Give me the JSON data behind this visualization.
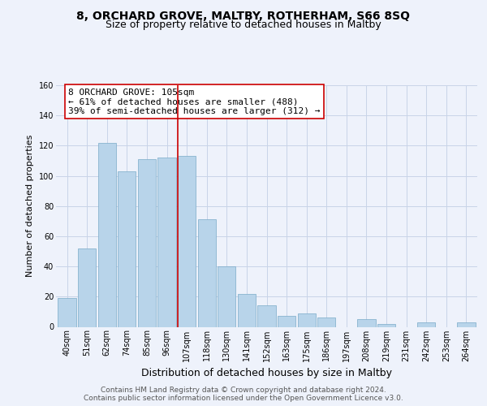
{
  "title": "8, ORCHARD GROVE, MALTBY, ROTHERHAM, S66 8SQ",
  "subtitle": "Size of property relative to detached houses in Maltby",
  "xlabel": "Distribution of detached houses by size in Maltby",
  "ylabel": "Number of detached properties",
  "categories": [
    "40sqm",
    "51sqm",
    "62sqm",
    "74sqm",
    "85sqm",
    "96sqm",
    "107sqm",
    "118sqm",
    "130sqm",
    "141sqm",
    "152sqm",
    "163sqm",
    "175sqm",
    "186sqm",
    "197sqm",
    "208sqm",
    "219sqm",
    "231sqm",
    "242sqm",
    "253sqm",
    "264sqm"
  ],
  "values": [
    19,
    52,
    122,
    103,
    111,
    112,
    113,
    71,
    40,
    22,
    14,
    7,
    9,
    6,
    0,
    5,
    2,
    0,
    3,
    0,
    3
  ],
  "bar_color": "#b8d4ea",
  "bar_edge_color": "#7aaac8",
  "highlight_index": 6,
  "highlight_line_color": "#cc0000",
  "annotation_text": "8 ORCHARD GROVE: 105sqm\n← 61% of detached houses are smaller (488)\n39% of semi-detached houses are larger (312) →",
  "annotation_box_edge_color": "#cc0000",
  "annotation_box_face_color": "#ffffff",
  "ylim": [
    0,
    160
  ],
  "yticks": [
    0,
    20,
    40,
    60,
    80,
    100,
    120,
    140,
    160
  ],
  "grid_color": "#c8d4e8",
  "background_color": "#eef2fb",
  "footer_text": "Contains HM Land Registry data © Crown copyright and database right 2024.\nContains public sector information licensed under the Open Government Licence v3.0.",
  "title_fontsize": 10,
  "subtitle_fontsize": 9,
  "xlabel_fontsize": 9,
  "ylabel_fontsize": 8,
  "tick_fontsize": 7,
  "annotation_fontsize": 8,
  "footer_fontsize": 6.5
}
